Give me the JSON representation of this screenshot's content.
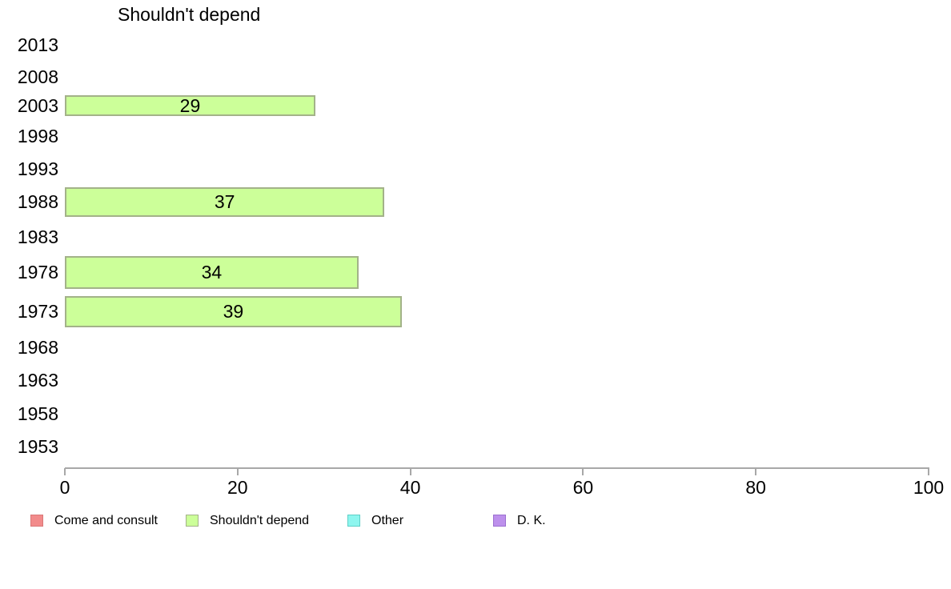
{
  "chart_data": {
    "type": "bar",
    "orientation": "horizontal",
    "title": "Shouldn't depend",
    "xlabel": "",
    "ylabel": "",
    "xlim": [
      0,
      100
    ],
    "x_ticks": [
      0,
      20,
      40,
      60,
      80,
      100
    ],
    "grid": false,
    "legend_position": "bottom",
    "bar_value_labels_shown": true,
    "categories": [
      "2013",
      "2008",
      "2003",
      "1998",
      "1993",
      "1988",
      "1983",
      "1978",
      "1973",
      "1968",
      "1963",
      "1958",
      "1953"
    ],
    "series": [
      {
        "name": "Come and consult",
        "fill": "#f28b8b",
        "border": "#d97777",
        "values": [
          null,
          null,
          null,
          null,
          null,
          null,
          null,
          null,
          null,
          null,
          null,
          null,
          null
        ]
      },
      {
        "name": "Shouldn't depend",
        "fill": "#ccff99",
        "border": "#a3b289",
        "values": [
          null,
          null,
          29,
          null,
          null,
          37,
          null,
          34,
          39,
          null,
          null,
          null,
          null
        ]
      },
      {
        "name": "Other",
        "fill": "#8ef6ef",
        "border": "#5ecfc7",
        "values": [
          null,
          null,
          null,
          null,
          null,
          null,
          null,
          null,
          null,
          null,
          null,
          null,
          null
        ]
      },
      {
        "name": "D. K.",
        "fill": "#bd90ec",
        "border": "#9b6fd0",
        "values": [
          null,
          null,
          null,
          null,
          null,
          null,
          null,
          null,
          null,
          null,
          null,
          null,
          null
        ]
      }
    ]
  },
  "colors": {
    "axis": "#a8a8a8",
    "text": "#000000",
    "background": "#ffffff"
  }
}
